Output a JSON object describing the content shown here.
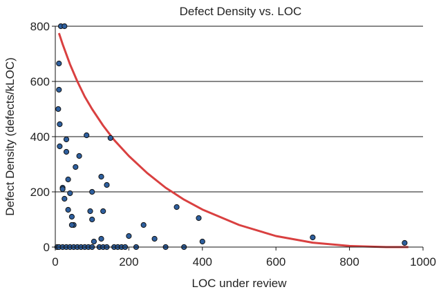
{
  "chart_data": {
    "type": "scatter",
    "title": "Defect Density vs. LOC",
    "xlabel": "LOC under review",
    "ylabel": "Defect Density (defects/kLOC)",
    "xlim": [
      0,
      1000
    ],
    "ylim": [
      0,
      800
    ],
    "x_ticks": [
      "0",
      "200",
      "400",
      "600",
      "800",
      "1000"
    ],
    "y_ticks": [
      "0",
      "200",
      "400",
      "600",
      "800"
    ],
    "grid": "horizontal",
    "legend": "none",
    "colors": {
      "points": "#2e5f9e",
      "point_edge": "#111111",
      "curve": "#d94040",
      "grid": "#111111"
    },
    "series": [
      {
        "type": "scatter",
        "x": [
          15,
          25,
          10,
          8,
          12,
          12,
          10,
          20,
          30,
          35,
          55,
          65,
          20,
          25,
          40,
          35,
          45,
          50,
          95,
          100,
          100,
          125,
          130,
          140,
          150,
          200,
          240,
          270,
          330,
          390,
          400,
          700,
          950,
          5,
          10,
          20,
          30,
          40,
          50,
          60,
          70,
          80,
          90,
          100,
          120,
          130,
          140,
          160,
          170,
          180,
          190,
          220,
          300,
          350,
          125,
          105,
          30,
          85,
          45
        ],
        "y": [
          800,
          800,
          665,
          500,
          445,
          365,
          570,
          215,
          390,
          245,
          290,
          330,
          210,
          175,
          195,
          135,
          110,
          80,
          130,
          100,
          200,
          255,
          130,
          225,
          395,
          40,
          80,
          30,
          145,
          105,
          20,
          35,
          15,
          0,
          0,
          0,
          0,
          0,
          0,
          0,
          0,
          0,
          0,
          0,
          0,
          0,
          0,
          0,
          0,
          0,
          0,
          0,
          0,
          0,
          30,
          20,
          345,
          405,
          80
        ]
      },
      {
        "type": "line",
        "x": [
          10,
          20,
          40,
          60,
          80,
          100,
          130,
          160,
          200,
          250,
          300,
          350,
          400,
          500,
          600,
          700,
          800,
          900,
          960
        ],
        "y": [
          775,
          735,
          662,
          600,
          545,
          500,
          440,
          388,
          330,
          268,
          215,
          172,
          136,
          80,
          40,
          16,
          4,
          0,
          0
        ]
      }
    ]
  }
}
